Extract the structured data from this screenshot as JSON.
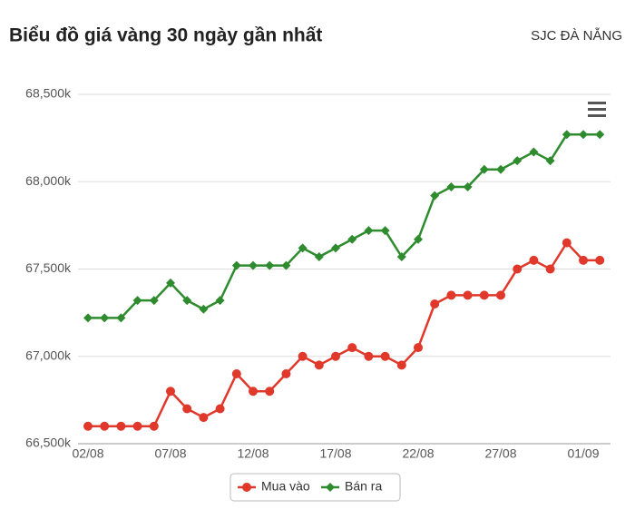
{
  "chart_data": {
    "type": "line",
    "title": "Biểu đồ giá vàng 30 ngày gần nhất",
    "subtitle": "SJC ĐÀ NẴNG",
    "categories": [
      "02/08",
      null,
      null,
      null,
      null,
      "07/08",
      null,
      null,
      null,
      null,
      "12/08",
      null,
      null,
      null,
      null,
      "17/08",
      null,
      null,
      null,
      null,
      "22/08",
      null,
      null,
      null,
      null,
      "27/08",
      null,
      null,
      null,
      null,
      "01/09",
      null
    ],
    "series": [
      {
        "name": "Mua vào",
        "color": "#e0392b",
        "marker": "circle",
        "values": [
          66600,
          66600,
          66600,
          66600,
          66600,
          66800,
          66700,
          66650,
          66700,
          66900,
          66800,
          66800,
          66900,
          67000,
          66950,
          67000,
          67050,
          67000,
          67000,
          66950,
          67050,
          67300,
          67350,
          67350,
          67350,
          67350,
          67500,
          67550,
          67500,
          67650,
          67550,
          67550
        ]
      },
      {
        "name": "Bán ra",
        "color": "#2e8b2e",
        "marker": "diamond",
        "values": [
          67220,
          67220,
          67220,
          67320,
          67320,
          67420,
          67320,
          67270,
          67320,
          67520,
          67520,
          67520,
          67520,
          67620,
          67570,
          67620,
          67670,
          67720,
          67720,
          67570,
          67670,
          67920,
          67970,
          67970,
          68070,
          68070,
          68120,
          68170,
          68120,
          68270,
          68270,
          68270
        ]
      }
    ],
    "ylim": [
      66500,
      68500
    ],
    "yticks": [
      {
        "value": 66500,
        "label": "66,500k"
      },
      {
        "value": 67000,
        "label": "67,000k"
      },
      {
        "value": 67500,
        "label": "67,500k"
      },
      {
        "value": 68000,
        "label": "68,000k"
      },
      {
        "value": 68500,
        "label": "68,500k"
      }
    ],
    "grid": true
  }
}
